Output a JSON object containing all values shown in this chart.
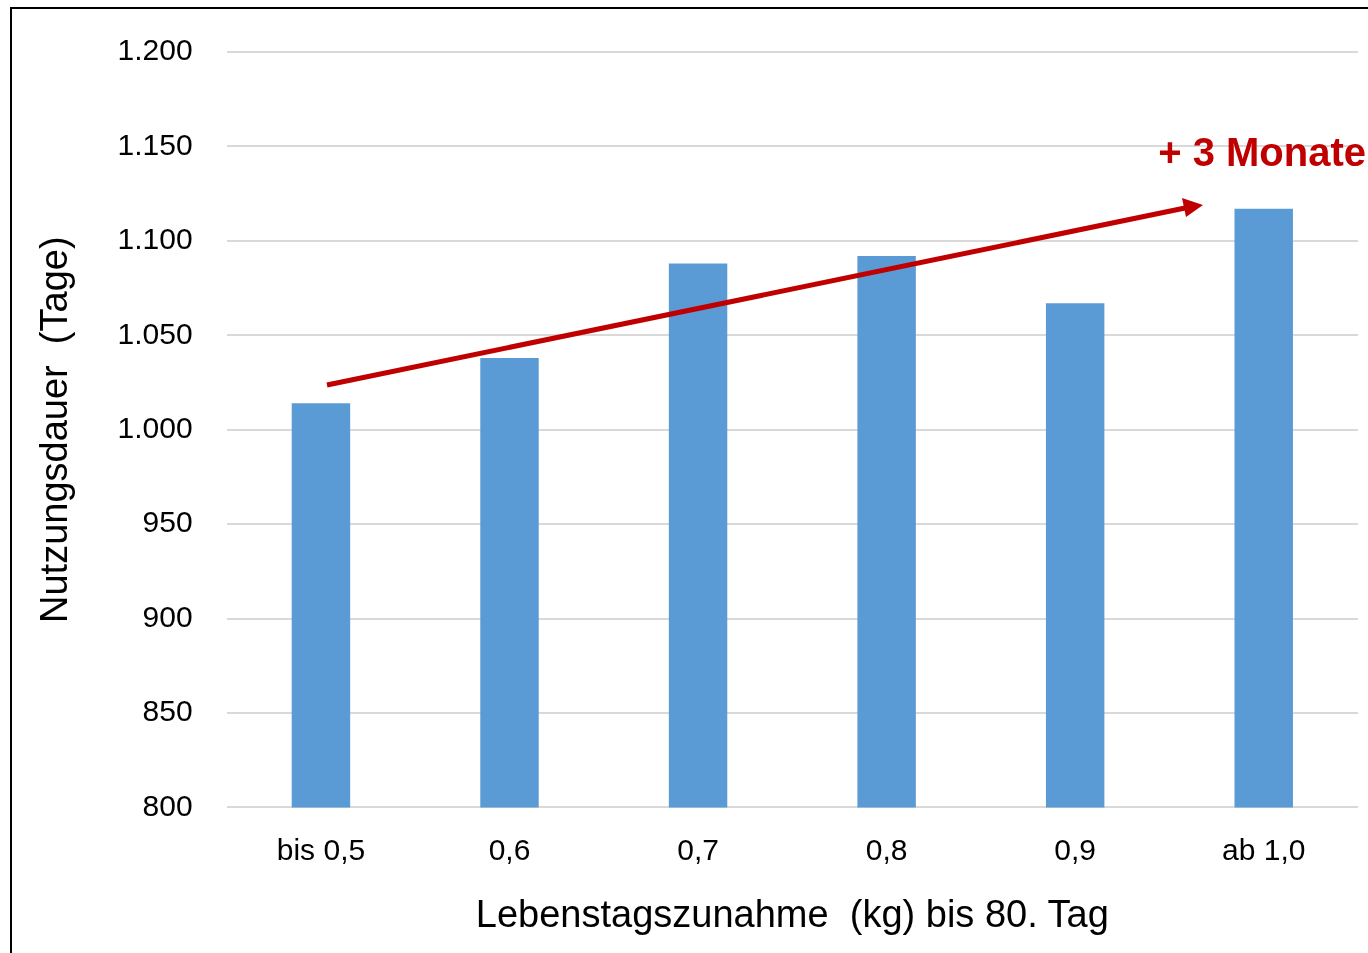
{
  "chart_data": {
    "type": "bar",
    "categories": [
      "bis 0,5",
      "0,6",
      "0,7",
      "0,8",
      "0,9",
      "ab 1,0"
    ],
    "values": [
      1014,
      1038,
      1088,
      1092,
      1067,
      1117
    ],
    "color": "#5b9bd5",
    "xlabel": "Lebenstagszunahme  (kg) bis 80. Tag",
    "ylabel": "Nutzungsdauer  (Tage)",
    "ylim": [
      800,
      1200
    ],
    "yticks": [
      800,
      850,
      900,
      950,
      {
        "value": 1000,
        "label": "1.000"
      },
      {
        "value": 1050,
        "label": "1.050"
      },
      {
        "value": 1100,
        "label": "1.100"
      },
      {
        "value": 1150,
        "label": "1.150"
      },
      {
        "value": 1200,
        "label": "1.200"
      }
    ],
    "grid": "y",
    "legend": false,
    "annotations": [
      "+ 3 Monate"
    ]
  }
}
